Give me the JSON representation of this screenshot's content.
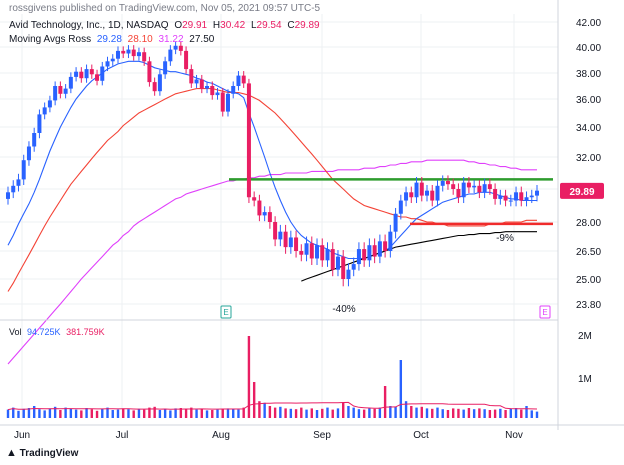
{
  "header": {
    "published_line": "rossgivens published on TradingView.com, Nov 05, 2021 09:57 UTC-5",
    "symbol_line": "Avid Technology, Inc., 1D, NASDAQ",
    "ohlc": {
      "o_label": "O",
      "o": "29.91",
      "h_label": "H",
      "h": "30.42",
      "l_label": "L",
      "l": "29.54",
      "c_label": "C",
      "c": "29.89"
    },
    "ma_label": "Moving Avgs Ross",
    "ma_values": [
      "29.28",
      "28.10",
      "31.22",
      "27.50"
    ],
    "vol_label": "Vol",
    "vol_values": [
      "94.725K",
      "381.759K"
    ]
  },
  "footer": {
    "brand": "TradingView"
  },
  "colors": {
    "up": "#2962ff",
    "down": "#e91e63",
    "ma_fast": "#2962ff",
    "ma_mid": "#f44336",
    "ma_slow": "#e040fb",
    "ma_long": "#000000",
    "resistance": "#2e9c2e",
    "support": "#f02b2b",
    "price_tag": "#e91e63",
    "grid": "#eef0f3"
  },
  "chart_data": {
    "type": "candlestick",
    "title": "Avid Technology, Inc., 1D, NASDAQ",
    "x_tick_labels": [
      "Jun",
      "Jul",
      "Aug",
      "Sep",
      "Oct",
      "Nov"
    ],
    "y_tick_labels": [
      "42.00",
      "40.00",
      "38.00",
      "36.00",
      "34.00",
      "32.00",
      "30.00",
      "28.00",
      "26.50",
      "25.00",
      "23.80"
    ],
    "ylim": [
      23.0,
      42.5
    ],
    "last_price": "29.89",
    "volume_axis_labels": [
      "2M",
      "1M"
    ],
    "earnings_markers": [
      "E",
      "E"
    ],
    "annotations": [
      "-40%",
      "-9%"
    ],
    "closes": [
      29.8,
      30.2,
      30.6,
      31.8,
      32.7,
      33.6,
      34.9,
      35.4,
      35.9,
      37.0,
      36.4,
      36.8,
      37.7,
      38.1,
      37.6,
      38.3,
      37.9,
      37.4,
      38.5,
      38.9,
      39.1,
      39.7,
      39.5,
      39.8,
      39.3,
      39.6,
      38.9,
      37.3,
      36.6,
      37.9,
      38.9,
      39.8,
      40.1,
      39.7,
      38.3,
      37.2,
      37.5,
      36.8,
      37.0,
      36.3,
      36.5,
      35.1,
      36.4,
      37.0,
      37.8,
      37.2,
      29.5,
      29.3,
      28.4,
      28.6,
      28.0,
      27.1,
      27.5,
      26.7,
      27.2,
      26.5,
      26.3,
      26.9,
      26.1,
      26.8,
      26.0,
      26.6,
      25.5,
      26.2,
      25.0,
      25.5,
      25.8,
      26.6,
      26.0,
      26.8,
      26.2,
      27.0,
      26.5,
      27.5,
      28.5,
      29.3,
      29.8,
      29.5,
      30.4,
      29.6,
      29.9,
      29.3,
      30.2,
      30.5,
      30.3,
      30.0,
      29.5,
      30.4,
      30.1,
      30.2,
      29.8,
      30.3,
      30.0,
      29.4,
      29.6,
      29.3,
      29.3,
      29.8,
      29.3,
      29.5,
      29.6,
      29.9
    ],
    "volumes_k": [
      210,
      260,
      180,
      230,
      250,
      300,
      220,
      190,
      240,
      280,
      200,
      260,
      230,
      210,
      190,
      250,
      220,
      180,
      230,
      260,
      200,
      210,
      240,
      220,
      190,
      230,
      210,
      260,
      280,
      200,
      220,
      190,
      240,
      250,
      230,
      260,
      210,
      220,
      190,
      200,
      210,
      230,
      240,
      220,
      210,
      260,
      2050,
      900,
      420,
      380,
      300,
      260,
      280,
      240,
      230,
      220,
      260,
      210,
      240,
      200,
      230,
      260,
      210,
      240,
      380,
      300,
      260,
      220,
      210,
      240,
      230,
      260,
      800,
      300,
      280,
      1450,
      420,
      300,
      260,
      280,
      240,
      230,
      260,
      220,
      200,
      240,
      230,
      210,
      250,
      220,
      240,
      220,
      200,
      210,
      230,
      200,
      240,
      250,
      210,
      300,
      190,
      160
    ],
    "ma_fast": [
      26.8,
      27.3,
      27.9,
      28.5,
      29.1,
      29.8,
      30.6,
      31.5,
      32.4,
      33.2,
      34.0,
      34.7,
      35.4,
      36.0,
      36.5,
      37.0,
      37.4,
      37.7,
      38.0,
      38.3,
      38.5,
      38.7,
      38.8,
      38.9,
      38.9,
      38.9,
      38.8,
      38.6,
      38.4,
      38.3,
      38.2,
      38.1,
      38.1,
      38.0,
      37.9,
      37.8,
      37.6,
      37.5,
      37.3,
      37.2,
      37.0,
      36.8,
      36.6,
      36.5,
      36.4,
      36.1,
      35.0,
      34.0,
      33.0,
      32.0,
      31.0,
      30.1,
      29.3,
      28.6,
      28.0,
      27.6,
      27.3,
      27.1,
      26.9,
      26.8,
      26.7,
      26.6,
      26.4,
      26.3,
      26.2,
      26.1,
      26.1,
      26.1,
      26.1,
      26.2,
      26.3,
      26.4,
      26.5,
      26.7,
      27.0,
      27.3,
      27.6,
      27.9,
      28.2,
      28.4,
      28.6,
      28.8,
      29.0,
      29.2,
      29.3,
      29.4,
      29.5,
      29.6,
      29.7,
      29.7,
      29.8,
      29.8,
      29.8,
      29.7,
      29.6,
      29.5,
      29.4,
      29.4,
      29.3,
      29.3,
      29.3,
      29.3
    ],
    "ma_mid": [
      24.4,
      24.8,
      25.3,
      25.8,
      26.3,
      26.8,
      27.3,
      27.8,
      28.3,
      28.8,
      29.3,
      29.8,
      30.3,
      30.7,
      31.1,
      31.5,
      31.9,
      32.3,
      32.7,
      33.1,
      33.4,
      33.7,
      34.1,
      34.4,
      34.7,
      35.0,
      35.2,
      35.4,
      35.6,
      35.8,
      36.0,
      36.2,
      36.4,
      36.5,
      36.6,
      36.7,
      36.8,
      36.8,
      36.8,
      36.8,
      36.7,
      36.6,
      36.5,
      36.5,
      36.5,
      36.4,
      36.3,
      36.1,
      35.9,
      35.6,
      35.3,
      35.0,
      34.6,
      34.2,
      33.8,
      33.4,
      33.0,
      32.6,
      32.2,
      31.8,
      31.4,
      31.0,
      30.6,
      30.3,
      30.0,
      29.7,
      29.4,
      29.2,
      29.0,
      28.9,
      28.8,
      28.7,
      28.6,
      28.5,
      28.4,
      28.3,
      28.3,
      28.2,
      28.2,
      28.1,
      28.0,
      28.0,
      27.9,
      27.9,
      27.8,
      27.8,
      27.8,
      27.8,
      27.8,
      27.8,
      27.8,
      27.8,
      27.9,
      27.9,
      27.9,
      28.0,
      28.0,
      28.0,
      28.0,
      28.1,
      28.1,
      28.1
    ],
    "ma_slow": [
      20.8,
      21.1,
      21.4,
      21.7,
      22.0,
      22.3,
      22.6,
      22.9,
      23.2,
      23.5,
      23.8,
      24.1,
      24.4,
      24.7,
      25.0,
      25.3,
      25.6,
      25.9,
      26.2,
      26.5,
      26.8,
      27.0,
      27.3,
      27.5,
      27.8,
      28.0,
      28.2,
      28.4,
      28.6,
      28.8,
      29.0,
      29.2,
      29.4,
      29.5,
      29.7,
      29.8,
      29.9,
      30.0,
      30.1,
      30.2,
      30.3,
      30.4,
      30.5,
      30.5,
      30.6,
      30.6,
      30.7,
      30.7,
      30.8,
      30.8,
      30.9,
      30.9,
      30.9,
      31.0,
      31.0,
      31.0,
      31.0,
      31.0,
      31.1,
      31.1,
      31.1,
      31.1,
      31.1,
      31.2,
      31.2,
      31.2,
      31.2,
      31.2,
      31.3,
      31.3,
      31.3,
      31.4,
      31.4,
      31.5,
      31.5,
      31.6,
      31.6,
      31.7,
      31.7,
      31.7,
      31.8,
      31.8,
      31.8,
      31.8,
      31.8,
      31.8,
      31.8,
      31.8,
      31.7,
      31.7,
      31.6,
      31.6,
      31.5,
      31.5,
      31.4,
      31.4,
      31.3,
      31.3,
      31.2,
      31.2,
      31.2,
      31.2
    ],
    "ma_long": [
      18.5,
      18.7,
      18.9,
      19.1,
      19.3,
      19.5,
      19.7,
      19.9,
      20.1,
      20.3,
      20.5,
      20.7,
      20.9,
      21.1,
      21.3,
      21.5,
      21.7,
      21.9,
      22.1,
      22.3,
      22.5,
      22.7,
      22.9,
      23.1,
      23.3,
      23.5,
      23.6,
      23.8,
      23.9,
      24.0,
      24.1,
      24.2,
      24.3,
      24.4,
      24.5,
      24.6,
      24.7,
      24.8,
      24.9,
      25.0,
      25.1,
      25.2,
      25.3,
      25.4,
      25.5,
      25.6,
      23.0,
      23.2,
      23.4,
      23.6,
      23.8,
      24.0,
      24.2,
      24.4,
      24.6,
      24.8,
      24.9,
      25.0,
      25.1,
      25.2,
      25.3,
      25.4,
      25.5,
      25.6,
      25.7,
      25.8,
      25.9,
      26.0,
      26.1,
      26.2,
      26.3,
      26.4,
      26.5,
      26.6,
      26.7,
      26.75,
      26.8,
      26.85,
      26.9,
      26.95,
      27.0,
      27.05,
      27.1,
      27.15,
      27.2,
      27.25,
      27.3,
      27.3,
      27.35,
      27.35,
      27.4,
      27.4,
      27.4,
      27.45,
      27.45,
      27.5,
      27.5,
      27.5,
      27.5,
      27.5,
      27.5,
      27.5
    ],
    "ma_long_start_index": 56,
    "resistance_level": 30.6,
    "support_level": 27.9,
    "earnings_bar_indices": [
      46,
      101
    ]
  }
}
